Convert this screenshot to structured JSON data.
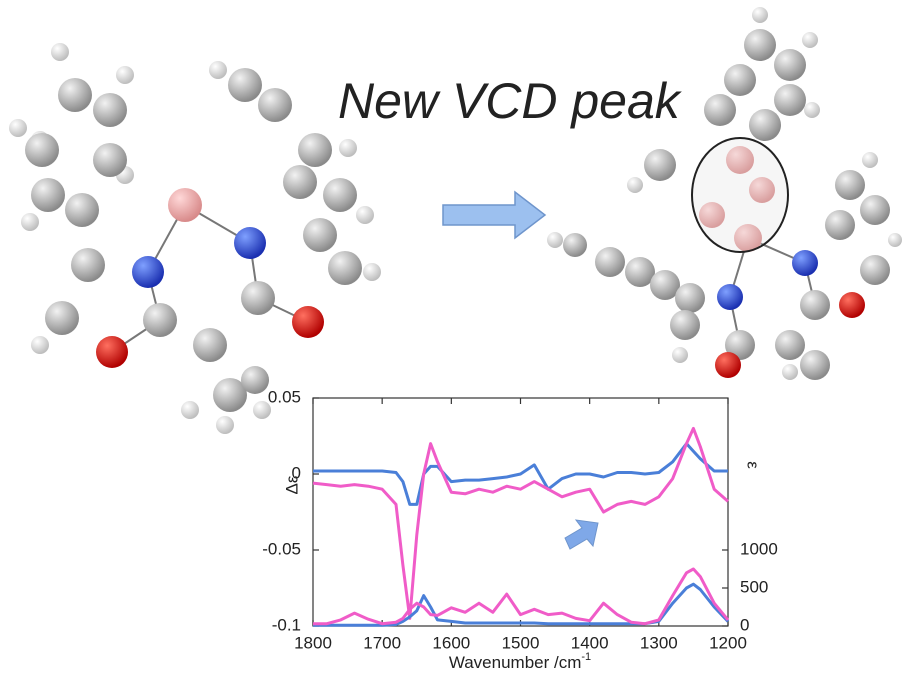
{
  "chart_data": {
    "type": "line",
    "annotation": "New VCD peak",
    "xlabel": "Wavenumber /cm",
    "xlabel_superscript": "-1",
    "ylabel": "Δε",
    "y2label": "ε",
    "x": [
      1800,
      1780,
      1760,
      1740,
      1720,
      1700,
      1680,
      1670,
      1660,
      1650,
      1640,
      1630,
      1620,
      1600,
      1580,
      1560,
      1540,
      1520,
      1500,
      1480,
      1460,
      1440,
      1420,
      1400,
      1380,
      1360,
      1340,
      1320,
      1300,
      1280,
      1260,
      1250,
      1240,
      1220,
      1200
    ],
    "xlim": [
      1800,
      1200
    ],
    "xticks": [
      1800,
      1700,
      1600,
      1500,
      1400,
      1300,
      1200
    ],
    "ylim": [
      -0.1,
      0.05
    ],
    "yticks": [
      -0.1,
      -0.05,
      0,
      0.05
    ],
    "y2lim": [
      0,
      3000
    ],
    "y2ticks": [
      0,
      500,
      1000
    ],
    "series": [
      {
        "color": "#4a7fd8",
        "values": [
          0.002,
          0.002,
          0.002,
          0.002,
          0.002,
          0.002,
          0.001,
          -0.005,
          -0.02,
          -0.02,
          0.0,
          0.005,
          0.005,
          -0.005,
          -0.004,
          -0.004,
          -0.003,
          -0.002,
          0.0,
          0.006,
          -0.01,
          -0.003,
          0.0,
          0.0,
          -0.002,
          0.001,
          0.001,
          0.0,
          0.001,
          0.008,
          0.02,
          0.015,
          0.01,
          0.002,
          0.002
        ]
      },
      {
        "color": "#f05cc8",
        "values": [
          -0.006,
          -0.007,
          -0.008,
          -0.007,
          -0.008,
          -0.01,
          -0.02,
          -0.06,
          -0.095,
          -0.04,
          0.0,
          0.02,
          0.008,
          -0.012,
          -0.013,
          -0.01,
          -0.012,
          -0.008,
          -0.01,
          -0.005,
          -0.01,
          -0.015,
          -0.012,
          -0.01,
          -0.025,
          -0.02,
          -0.018,
          -0.02,
          -0.015,
          -0.003,
          0.02,
          0.03,
          0.018,
          -0.01,
          -0.018
        ]
      },
      {
        "color": "#4a7fd8",
        "axis": "y2",
        "values": [
          10,
          10,
          10,
          10,
          10,
          10,
          20,
          60,
          120,
          200,
          400,
          250,
          80,
          60,
          40,
          40,
          40,
          40,
          40,
          40,
          30,
          30,
          30,
          30,
          30,
          30,
          30,
          30,
          60,
          300,
          500,
          550,
          480,
          250,
          60
        ]
      },
      {
        "color": "#f05cc8",
        "axis": "y2",
        "values": [
          30,
          30,
          80,
          170,
          90,
          30,
          50,
          100,
          220,
          300,
          250,
          150,
          140,
          240,
          180,
          300,
          180,
          420,
          150,
          220,
          150,
          170,
          100,
          70,
          300,
          150,
          50,
          30,
          80,
          400,
          700,
          750,
          650,
          300,
          80
        ]
      }
    ]
  }
}
